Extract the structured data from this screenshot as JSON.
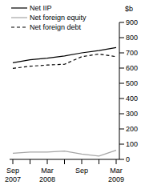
{
  "chart_data": {
    "type": "line",
    "y_label": "$b",
    "categories": [
      "Sep 2007",
      null,
      "Mar 2008",
      null,
      "Sep",
      null,
      "Mar 2009"
    ],
    "series": [
      {
        "name": "Net IIP",
        "color": "#000000",
        "line_style": "solid",
        "values": [
          635,
          655,
          665,
          680,
          700,
          715,
          735
        ]
      },
      {
        "name": "Net foreign equity",
        "color": "#a6a6a6",
        "line_style": "solid",
        "values": [
          40,
          48,
          48,
          55,
          35,
          22,
          60
        ]
      },
      {
        "name": "Net foreign debt",
        "color": "#000000",
        "line_style": "dashed",
        "values": [
          598,
          612,
          620,
          625,
          675,
          692,
          675
        ]
      }
    ],
    "ylim": [
      0,
      900
    ],
    "yticks": [
      0,
      100,
      200,
      300,
      400,
      500,
      600,
      700,
      800,
      900
    ],
    "grid": false,
    "legend": "top-left"
  }
}
